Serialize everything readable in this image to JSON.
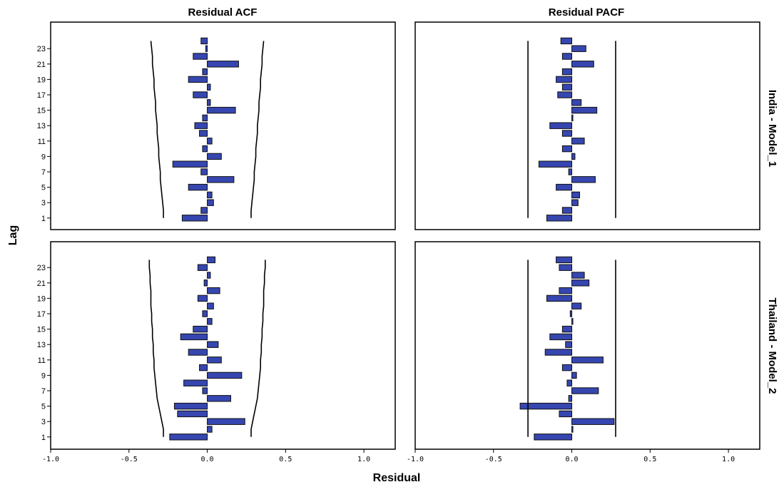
{
  "chart_data": {
    "type": "bar",
    "orientation": "horizontal",
    "x_label": "Residual",
    "y_label": "Lag",
    "columns": [
      "Residual ACF",
      "Residual PACF"
    ],
    "rows": [
      "India - Model_1",
      "Thailand - Model_2"
    ],
    "xlim": [
      -1.0,
      1.2
    ],
    "x_ticks": [
      "-1.0",
      "-0.5",
      "0.0",
      "0.5",
      "1.0"
    ],
    "y_ticks": [
      "1",
      "3",
      "5",
      "7",
      "9",
      "11",
      "13",
      "15",
      "17",
      "19",
      "21",
      "23"
    ],
    "lags": [
      1,
      2,
      3,
      4,
      5,
      6,
      7,
      8,
      9,
      10,
      11,
      12,
      13,
      14,
      15,
      16,
      17,
      18,
      19,
      20,
      21,
      22,
      23,
      24
    ],
    "colors": {
      "bar": "#3646b0",
      "bar_edge": "#111111",
      "frame": "#000000",
      "limits": "#000000"
    },
    "panels": [
      {
        "row": "India - Model_1",
        "column": "Residual ACF",
        "values": [
          -0.16,
          -0.04,
          0.04,
          0.03,
          -0.12,
          0.17,
          -0.04,
          -0.22,
          0.09,
          -0.03,
          0.03,
          -0.05,
          -0.08,
          -0.03,
          0.18,
          0.02,
          -0.09,
          0.02,
          -0.12,
          -0.03,
          0.2,
          -0.09,
          -0.01,
          -0.04
        ],
        "upper_limit": [
          0.28,
          0.28,
          0.285,
          0.29,
          0.295,
          0.3,
          0.3,
          0.305,
          0.31,
          0.31,
          0.315,
          0.32,
          0.32,
          0.325,
          0.33,
          0.33,
          0.335,
          0.34,
          0.34,
          0.345,
          0.35,
          0.35,
          0.355,
          0.36
        ],
        "lower_limit": [
          -0.28,
          -0.28,
          -0.285,
          -0.29,
          -0.295,
          -0.3,
          -0.3,
          -0.305,
          -0.31,
          -0.31,
          -0.315,
          -0.32,
          -0.32,
          -0.325,
          -0.33,
          -0.33,
          -0.335,
          -0.34,
          -0.34,
          -0.345,
          -0.35,
          -0.35,
          -0.355,
          -0.36
        ]
      },
      {
        "row": "India - Model_1",
        "column": "Residual PACF",
        "values": [
          -0.16,
          -0.06,
          0.04,
          0.05,
          -0.1,
          0.15,
          -0.02,
          -0.21,
          0.02,
          -0.06,
          0.08,
          -0.06,
          -0.14,
          0.0,
          0.16,
          0.06,
          -0.09,
          -0.06,
          -0.1,
          -0.06,
          0.14,
          -0.06,
          0.09,
          -0.07
        ],
        "upper_limit": [
          0.28,
          0.28,
          0.28,
          0.28,
          0.28,
          0.28,
          0.28,
          0.28,
          0.28,
          0.28,
          0.28,
          0.28,
          0.28,
          0.28,
          0.28,
          0.28,
          0.28,
          0.28,
          0.28,
          0.28,
          0.28,
          0.28,
          0.28,
          0.28
        ],
        "lower_limit": [
          -0.28,
          -0.28,
          -0.28,
          -0.28,
          -0.28,
          -0.28,
          -0.28,
          -0.28,
          -0.28,
          -0.28,
          -0.28,
          -0.28,
          -0.28,
          -0.28,
          -0.28,
          -0.28,
          -0.28,
          -0.28,
          -0.28,
          -0.28,
          -0.28,
          -0.28,
          -0.28,
          -0.28
        ]
      },
      {
        "row": "Thailand - Model_2",
        "column": "Residual ACF",
        "values": [
          -0.24,
          0.03,
          0.24,
          -0.19,
          -0.21,
          0.15,
          -0.03,
          -0.15,
          0.22,
          -0.05,
          0.09,
          -0.12,
          0.07,
          -0.17,
          -0.09,
          0.03,
          -0.03,
          0.04,
          -0.06,
          0.08,
          -0.02,
          0.02,
          -0.06,
          0.05
        ],
        "upper_limit": [
          0.28,
          0.28,
          0.29,
          0.3,
          0.31,
          0.32,
          0.325,
          0.33,
          0.335,
          0.34,
          0.34,
          0.345,
          0.345,
          0.35,
          0.35,
          0.355,
          0.355,
          0.36,
          0.36,
          0.36,
          0.365,
          0.365,
          0.37,
          0.37
        ],
        "lower_limit": [
          -0.28,
          -0.28,
          -0.29,
          -0.3,
          -0.31,
          -0.32,
          -0.325,
          -0.33,
          -0.335,
          -0.34,
          -0.34,
          -0.345,
          -0.345,
          -0.35,
          -0.35,
          -0.355,
          -0.355,
          -0.36,
          -0.36,
          -0.36,
          -0.365,
          -0.365,
          -0.37,
          -0.37
        ]
      },
      {
        "row": "Thailand - Model_2",
        "column": "Residual PACF",
        "values": [
          -0.24,
          0.0,
          0.27,
          -0.08,
          -0.33,
          -0.02,
          0.17,
          -0.03,
          0.03,
          -0.06,
          0.2,
          -0.17,
          -0.04,
          -0.14,
          -0.06,
          0.0,
          -0.01,
          0.06,
          -0.16,
          -0.08,
          0.11,
          0.08,
          -0.08,
          -0.1
        ],
        "upper_limit": [
          0.28,
          0.28,
          0.28,
          0.28,
          0.28,
          0.28,
          0.28,
          0.28,
          0.28,
          0.28,
          0.28,
          0.28,
          0.28,
          0.28,
          0.28,
          0.28,
          0.28,
          0.28,
          0.28,
          0.28,
          0.28,
          0.28,
          0.28,
          0.28
        ],
        "lower_limit": [
          -0.28,
          -0.28,
          -0.28,
          -0.28,
          -0.28,
          -0.28,
          -0.28,
          -0.28,
          -0.28,
          -0.28,
          -0.28,
          -0.28,
          -0.28,
          -0.28,
          -0.28,
          -0.28,
          -0.28,
          -0.28,
          -0.28,
          -0.28,
          -0.28,
          -0.28,
          -0.28,
          -0.28
        ]
      }
    ]
  }
}
